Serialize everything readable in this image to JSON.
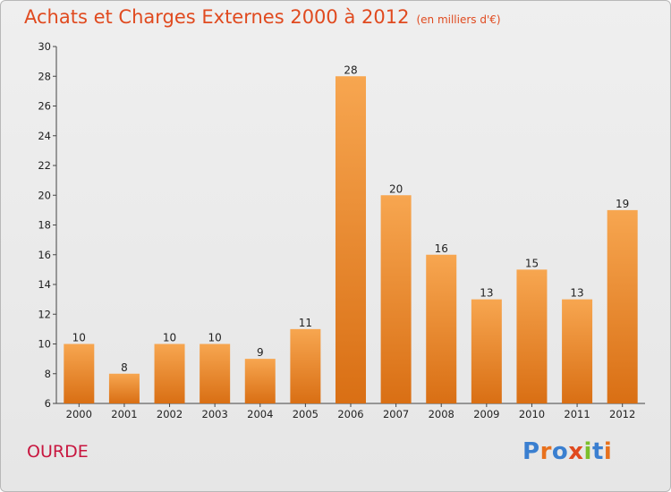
{
  "header": {
    "title": "Achats et Charges Externes 2000 à 2012",
    "subtitle": "(en milliers d'€)"
  },
  "footer": {
    "place": "OURDE",
    "logo_text": "Proxiti",
    "logo_colors": [
      "#3a7fd0",
      "#e8711d",
      "#3a7fd0",
      "#e04a1f",
      "#7bbf2b",
      "#3a7fd0",
      "#e8711d"
    ]
  },
  "colors": {
    "bar_top": "#f7a650",
    "bar_bottom": "#d96f14",
    "title": "#e04a1f",
    "place": "#c8163f"
  },
  "chart_data": {
    "type": "bar",
    "title": "Achats et Charges Externes 2000 à 2012",
    "subtitle": "(en milliers d'€)",
    "categories": [
      "2000",
      "2001",
      "2002",
      "2003",
      "2004",
      "2005",
      "2006",
      "2007",
      "2008",
      "2009",
      "2010",
      "2011",
      "2012"
    ],
    "values": [
      10,
      8,
      10,
      10,
      9,
      11,
      28,
      20,
      16,
      13,
      15,
      13,
      19
    ],
    "ylim": [
      6,
      30
    ],
    "yticks": [
      6,
      8,
      10,
      12,
      14,
      16,
      18,
      20,
      22,
      24,
      26,
      28,
      30
    ],
    "grid": false,
    "data_labels": true
  }
}
